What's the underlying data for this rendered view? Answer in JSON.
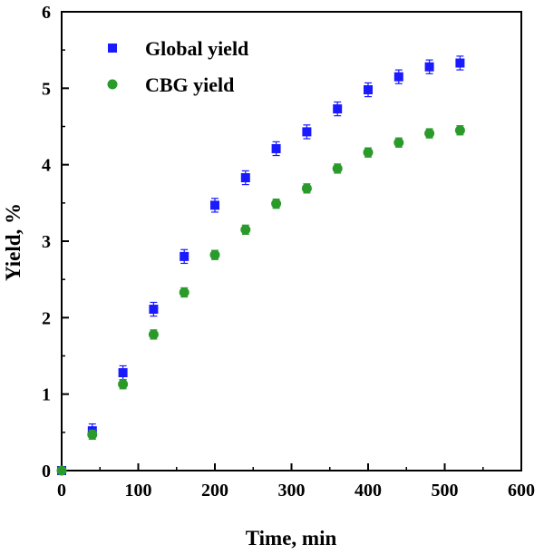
{
  "chart_data": {
    "type": "scatter",
    "title": "",
    "xlabel": "Time, min",
    "ylabel": "Yield, %",
    "xlim": [
      0,
      600
    ],
    "ylim": [
      0,
      6
    ],
    "xticks": [
      0,
      100,
      200,
      300,
      400,
      500,
      600
    ],
    "yticks": [
      0,
      1,
      2,
      3,
      4,
      5,
      6
    ],
    "grid": false,
    "legend_position": "top-left",
    "series": [
      {
        "name": "Global yield",
        "marker": "square",
        "color": "#1a1aff",
        "x": [
          0,
          40,
          80,
          120,
          160,
          200,
          240,
          280,
          320,
          360,
          400,
          440,
          480,
          520
        ],
        "y": [
          0.0,
          0.52,
          1.28,
          2.11,
          2.8,
          3.47,
          3.83,
          4.21,
          4.43,
          4.73,
          4.98,
          5.15,
          5.28,
          5.33
        ],
        "err": [
          0.05,
          0.09,
          0.09,
          0.09,
          0.09,
          0.09,
          0.09,
          0.09,
          0.09,
          0.09,
          0.09,
          0.09,
          0.09,
          0.09
        ]
      },
      {
        "name": "CBG yield",
        "marker": "circle",
        "color": "#2a9a2a",
        "x": [
          0,
          40,
          80,
          120,
          160,
          200,
          240,
          280,
          320,
          360,
          400,
          440,
          480,
          520
        ],
        "y": [
          0.0,
          0.47,
          1.13,
          1.78,
          2.33,
          2.82,
          3.15,
          3.49,
          3.69,
          3.95,
          4.16,
          4.29,
          4.41,
          4.45
        ],
        "err": [
          0.04,
          0.06,
          0.06,
          0.06,
          0.06,
          0.06,
          0.06,
          0.06,
          0.06,
          0.06,
          0.06,
          0.06,
          0.06,
          0.06
        ]
      }
    ]
  }
}
